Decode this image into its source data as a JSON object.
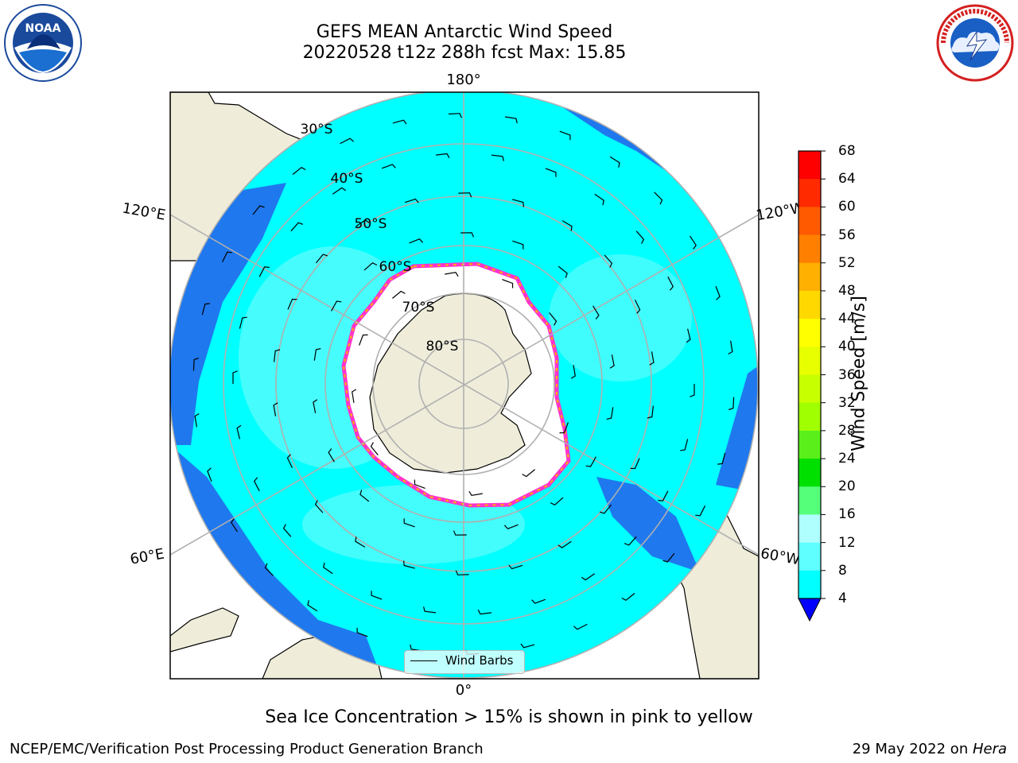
{
  "title": {
    "line1": "GEFS MEAN Antarctic Wind Speed",
    "line2": "20220528 t12z 288h fcst   Max: 15.85"
  },
  "logos": {
    "left": "noaa-logo",
    "right": "nws-logo",
    "left_text": "NOAA",
    "left_ring_text": "NATIONAL OCEANIC AND ATMOSPHERIC ADMINISTRATION · U.S. DEPARTMENT OF COMMERCE",
    "right_ring_text": "NATIONAL WEATHER SERVICE"
  },
  "map": {
    "projection": "south-polar-stereographic",
    "longitude_labels": [
      "180°",
      "120°E",
      "120°W",
      "60°E",
      "60°W",
      "0°"
    ],
    "latitude_labels": [
      "30°S",
      "40°S",
      "50°S",
      "60°S",
      "70°S",
      "80°S"
    ],
    "legend_label": "Wind Barbs",
    "colors": {
      "land": "#efedda",
      "sea_ice": "#ffffff",
      "ice_edge": [
        "#ff33cc",
        "#ff9900",
        "#ffee00"
      ],
      "grid": "#b0b0b0",
      "wind_4_8": "#1f78ee",
      "wind_8_12": "#00ffff",
      "wind_12_16": "#4ffcfc"
    }
  },
  "colorbar": {
    "label": "Wind Speed [m/s]",
    "ticks": [
      "68",
      "64",
      "60",
      "56",
      "52",
      "48",
      "44",
      "40",
      "36",
      "32",
      "28",
      "24",
      "20",
      "16",
      "12",
      "8",
      "4"
    ],
    "colors": [
      "#ff0000",
      "#ff2a00",
      "#ff5a00",
      "#ff8000",
      "#ffb000",
      "#ffd800",
      "#ffff00",
      "#e8ff00",
      "#c8ff00",
      "#a0ff00",
      "#5aef1a",
      "#00e000",
      "#55ff7a",
      "#b0ffff",
      "#60ffff",
      "#00ffff",
      "#1f78ee"
    ],
    "extend_min_color": "#0000ff"
  },
  "caption": "Sea Ice Concentration > 15% is shown in pink to yellow",
  "footer": {
    "left": "NCEP/EMC/Verification Post Processing Product Generation Branch",
    "right_date": "29 May 2022 on ",
    "right_machine": "Hera"
  }
}
